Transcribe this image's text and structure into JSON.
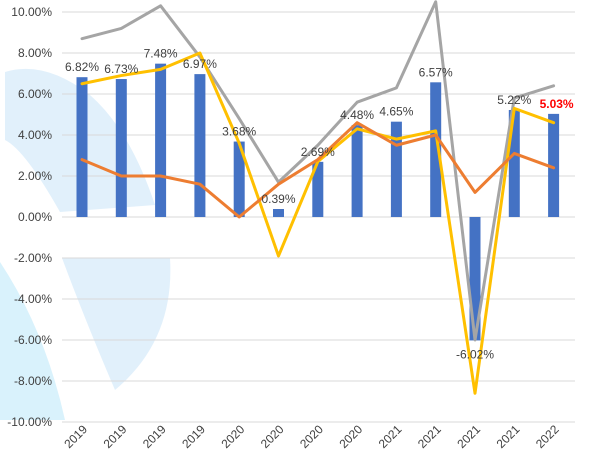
{
  "chart_data": {
    "type": "bar",
    "grid": true,
    "legend": "none",
    "ylim": [
      -10,
      10
    ],
    "y_ticks": [
      "10.00%",
      "8.00%",
      "6.00%",
      "4.00%",
      "2.00%",
      "0.00%",
      "-2.00%",
      "-4.00%",
      "-6.00%",
      "-8.00%",
      "-10.00%"
    ],
    "categories": [
      "2019",
      "2019",
      "2019",
      "2019",
      "2020",
      "2020",
      "2020",
      "2020",
      "2021",
      "2021",
      "2021",
      "2021",
      "2022"
    ],
    "series": [
      {
        "kind": "bar",
        "color": "#4472C4",
        "values": [
          6.82,
          6.73,
          7.48,
          6.97,
          3.68,
          0.39,
          2.69,
          4.48,
          4.65,
          6.57,
          -6.02,
          5.22,
          5.03
        ],
        "labels": [
          "6.82%",
          "6.73%",
          "7.48%",
          "6.97%",
          "3.68%",
          "0.39%",
          "2.69%",
          "4.48%",
          "4.65%",
          "6.57%",
          "-6.02%",
          "5.22%",
          "5.03%"
        ]
      },
      {
        "kind": "line",
        "color": "#A5A5A5",
        "values": [
          8.7,
          9.2,
          10.3,
          7.8,
          4.8,
          1.7,
          3.5,
          5.6,
          6.3,
          10.5,
          -6.0,
          5.8,
          6.4
        ]
      },
      {
        "kind": "line",
        "color": "#FFC000",
        "values": [
          6.5,
          6.9,
          7.2,
          8.0,
          3.6,
          -1.9,
          2.7,
          4.3,
          3.8,
          4.2,
          -8.6,
          5.3,
          4.6
        ]
      },
      {
        "kind": "line",
        "color": "#ED7D31",
        "values": [
          2.8,
          2.0,
          2.0,
          1.6,
          0.0,
          1.6,
          2.8,
          4.6,
          3.5,
          4.0,
          1.2,
          3.1,
          2.4
        ]
      }
    ],
    "highlight": {
      "index": 12,
      "color": "#FF0000"
    }
  }
}
